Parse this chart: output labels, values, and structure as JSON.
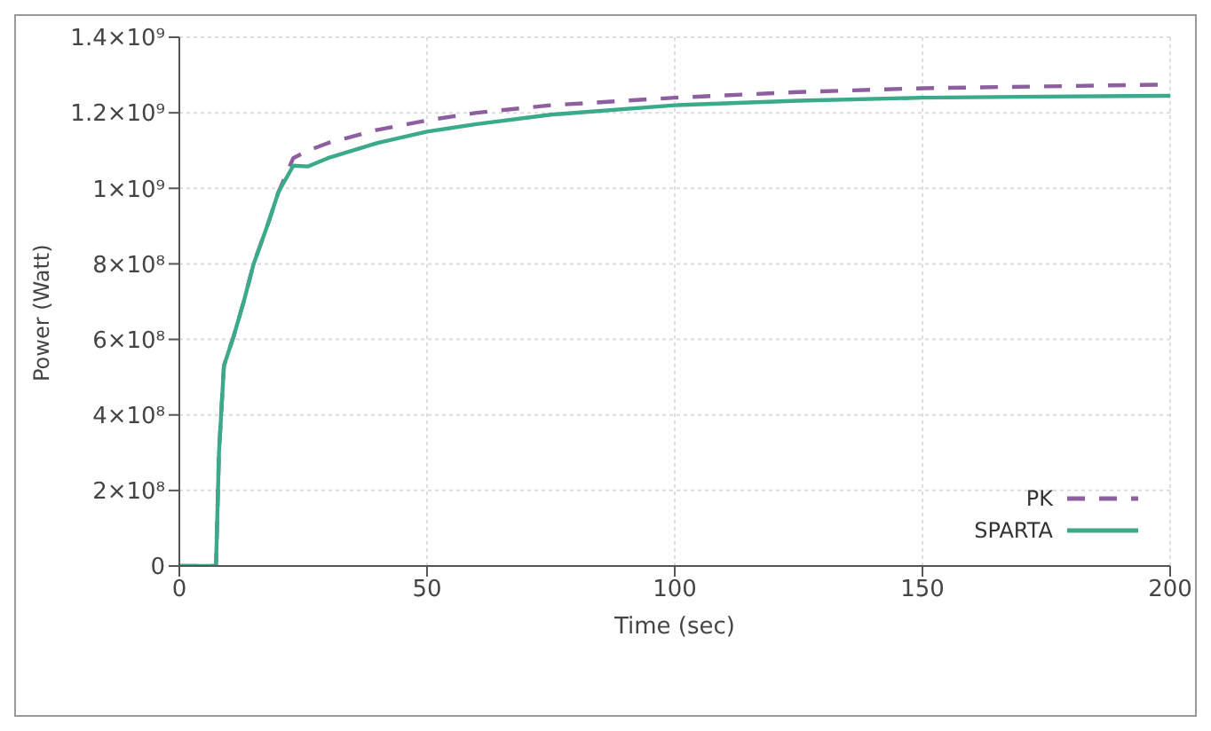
{
  "chart_data": {
    "type": "line",
    "xlabel": "Time (sec)",
    "ylabel": "Power (Watt)",
    "xlim": [
      0,
      200
    ],
    "xticks": [
      0,
      50,
      100,
      150,
      200
    ],
    "ylim": [
      0,
      1400000000
    ],
    "yticks": [
      {
        "value": 0,
        "label": "0"
      },
      {
        "value": 200000000,
        "label": "2×10⁸"
      },
      {
        "value": 400000000,
        "label": "4×10⁸"
      },
      {
        "value": 600000000,
        "label": "6×10⁸"
      },
      {
        "value": 800000000,
        "label": "8×10⁸"
      },
      {
        "value": 1000000000,
        "label": "1×10⁹"
      },
      {
        "value": 1200000000,
        "label": "1.2×10⁹"
      },
      {
        "value": 1400000000,
        "label": "1.4×10⁹"
      }
    ],
    "grid": true,
    "legend": "bottom right",
    "marker": "none",
    "series": [
      {
        "name": "PK",
        "color": "#8e5fa0",
        "line_style": "dashed",
        "x": [
          0,
          7.4,
          8,
          9,
          11,
          13,
          15,
          18,
          20,
          23,
          26,
          30,
          40,
          50,
          60,
          75,
          100,
          125,
          150,
          175,
          200
        ],
        "values": [
          0,
          0,
          300000000,
          530000000,
          610000000,
          700000000,
          800000000,
          910000000,
          990000000,
          1080000000,
          1100000000,
          1120000000,
          1155000000,
          1180000000,
          1200000000,
          1220000000,
          1240000000,
          1255000000,
          1265000000,
          1270000000,
          1275000000
        ]
      },
      {
        "name": "SPARTA",
        "color": "#3aaa8a",
        "line_style": "solid",
        "x": [
          0,
          7.4,
          8,
          9,
          11,
          13,
          15,
          18,
          20,
          23,
          26,
          30,
          40,
          50,
          60,
          75,
          100,
          125,
          150,
          175,
          200
        ],
        "values": [
          0,
          0,
          300000000,
          530000000,
          610000000,
          700000000,
          800000000,
          910000000,
          990000000,
          1060000000,
          1058000000,
          1080000000,
          1120000000,
          1150000000,
          1170000000,
          1195000000,
          1220000000,
          1232000000,
          1240000000,
          1243000000,
          1245000000
        ]
      }
    ]
  }
}
